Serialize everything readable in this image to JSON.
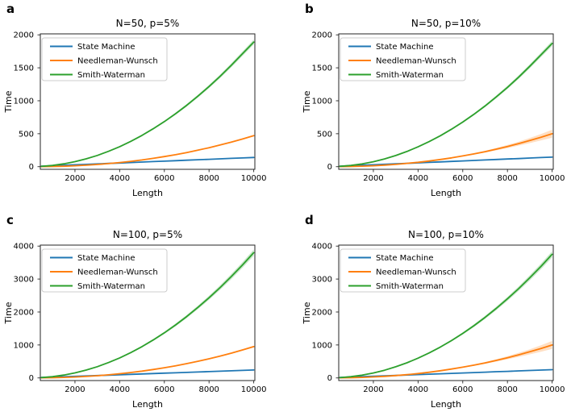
{
  "figure": {
    "background": "#ffffff",
    "spine_color": "#262626",
    "text_color": "#000000",
    "legend_border_color": "#cccccc",
    "series_colors": {
      "state_machine": "#1f77b4",
      "needleman_wunsch": "#ff7f0e",
      "smith_waterman": "#2ca02c"
    }
  },
  "chart_data": [
    {
      "panel": "a",
      "type": "line",
      "title": "N=50, p=5%",
      "xlabel": "Length",
      "ylabel": "Time",
      "xlim": [
        450,
        10050
      ],
      "ylim": [
        -40,
        2015
      ],
      "xticks": [
        2000,
        4000,
        6000,
        8000,
        10000
      ],
      "yticks": [
        0,
        500,
        1000,
        1500,
        2000
      ],
      "grid": false,
      "legend": {
        "position": "upper-left",
        "labels": [
          "State Machine",
          "Needleman-Wunsch",
          "Smith-Waterman"
        ]
      },
      "x": [
        500,
        1000,
        1500,
        2000,
        2500,
        3000,
        3500,
        4000,
        4500,
        5000,
        5500,
        6000,
        6500,
        7000,
        7500,
        8000,
        8500,
        9000,
        9500,
        10000
      ],
      "series": [
        {
          "name": "State Machine",
          "color": "#1f77b4",
          "values": [
            7,
            14,
            21,
            28,
            35,
            42,
            49,
            56,
            63,
            70,
            77,
            84,
            91,
            98,
            105,
            112,
            119,
            126,
            133,
            140
          ],
          "band": [
            0,
            0,
            0,
            0,
            1,
            1,
            1,
            1,
            1,
            1,
            1,
            1,
            1,
            1,
            2,
            2,
            2,
            2,
            2,
            2
          ]
        },
        {
          "name": "Needleman-Wunsch",
          "color": "#ff7f0e",
          "values": [
            1,
            3,
            7,
            14,
            22,
            33,
            47,
            63,
            81,
            102,
            126,
            153,
            182,
            215,
            250,
            288,
            329,
            373,
            420,
            470
          ],
          "band": [
            0,
            0,
            0,
            0,
            0,
            1,
            1,
            1,
            2,
            2,
            3,
            3,
            4,
            4,
            5,
            6,
            7,
            7,
            8,
            9
          ]
        },
        {
          "name": "Smith-Waterman",
          "color": "#2ca02c",
          "values": [
            5,
            19,
            43,
            76,
            119,
            171,
            233,
            304,
            385,
            475,
            575,
            684,
            803,
            931,
            1069,
            1216,
            1373,
            1539,
            1715,
            1890
          ],
          "band": [
            0,
            0,
            1,
            2,
            2,
            3,
            5,
            6,
            8,
            10,
            12,
            14,
            16,
            19,
            21,
            24,
            28,
            31,
            34,
            38
          ]
        }
      ]
    },
    {
      "panel": "b",
      "type": "line",
      "title": "N=50, p=10%",
      "xlabel": "Length",
      "ylabel": "Time",
      "xlim": [
        450,
        10050
      ],
      "ylim": [
        -40,
        2015
      ],
      "xticks": [
        2000,
        4000,
        6000,
        8000,
        10000
      ],
      "yticks": [
        0,
        500,
        1000,
        1500,
        2000
      ],
      "grid": false,
      "legend": {
        "position": "upper-left",
        "labels": [
          "State Machine",
          "Needleman-Wunsch",
          "Smith-Waterman"
        ]
      },
      "x": [
        500,
        1000,
        1500,
        2000,
        2500,
        3000,
        3500,
        4000,
        4500,
        5000,
        5500,
        6000,
        6500,
        7000,
        7500,
        8000,
        8500,
        9000,
        9500,
        10000
      ],
      "series": [
        {
          "name": "State Machine",
          "color": "#1f77b4",
          "values": [
            7,
            15,
            22,
            29,
            36,
            44,
            51,
            58,
            65,
            73,
            80,
            87,
            94,
            102,
            109,
            116,
            123,
            131,
            138,
            145
          ],
          "band": [
            0,
            0,
            0,
            0,
            1,
            1,
            1,
            1,
            1,
            1,
            1,
            1,
            1,
            1,
            2,
            2,
            2,
            2,
            2,
            2
          ]
        },
        {
          "name": "Needleman-Wunsch",
          "color": "#ff7f0e",
          "values": [
            1,
            3,
            8,
            14,
            24,
            35,
            50,
            67,
            86,
            109,
            134,
            163,
            194,
            228,
            266,
            306,
            350,
            397,
            447,
            500
          ],
          "band": [
            0,
            0,
            0,
            0,
            0,
            0,
            1,
            1,
            2,
            3,
            5,
            7,
            10,
            13,
            18,
            24,
            30,
            39,
            48,
            60
          ]
        },
        {
          "name": "Smith-Waterman",
          "color": "#2ca02c",
          "values": [
            5,
            19,
            42,
            75,
            118,
            169,
            230,
            301,
            381,
            470,
            569,
            677,
            794,
            921,
            1058,
            1203,
            1358,
            1523,
            1697,
            1870
          ],
          "band": [
            0,
            0,
            1,
            2,
            2,
            3,
            5,
            6,
            8,
            9,
            11,
            14,
            16,
            18,
            21,
            24,
            27,
            30,
            34,
            38
          ]
        }
      ]
    },
    {
      "panel": "c",
      "type": "line",
      "title": "N=100, p=5%",
      "xlabel": "Length",
      "ylabel": "Time",
      "xlim": [
        450,
        10050
      ],
      "ylim": [
        -80,
        4030
      ],
      "xticks": [
        2000,
        4000,
        6000,
        8000,
        10000
      ],
      "yticks": [
        0,
        1000,
        2000,
        3000,
        4000
      ],
      "grid": false,
      "legend": {
        "position": "upper-left",
        "labels": [
          "State Machine",
          "Needleman-Wunsch",
          "Smith-Waterman"
        ]
      },
      "x": [
        500,
        1000,
        1500,
        2000,
        2500,
        3000,
        3500,
        4000,
        4500,
        5000,
        5500,
        6000,
        6500,
        7000,
        7500,
        8000,
        8500,
        9000,
        9500,
        10000
      ],
      "series": [
        {
          "name": "State Machine",
          "color": "#1f77b4",
          "values": [
            12,
            24,
            36,
            48,
            60,
            72,
            84,
            96,
            108,
            120,
            132,
            144,
            156,
            168,
            180,
            192,
            204,
            216,
            228,
            240
          ],
          "band": [
            0,
            0,
            0,
            1,
            1,
            1,
            1,
            1,
            2,
            2,
            2,
            2,
            2,
            3,
            3,
            3,
            3,
            3,
            4,
            4
          ]
        },
        {
          "name": "Needleman-Wunsch",
          "color": "#ff7f0e",
          "values": [
            2,
            6,
            15,
            27,
            45,
            67,
            94,
            127,
            164,
            207,
            255,
            309,
            368,
            434,
            505,
            581,
            664,
            753,
            849,
            950
          ],
          "band": [
            0,
            0,
            0,
            1,
            1,
            2,
            2,
            3,
            4,
            5,
            6,
            8,
            9,
            11,
            13,
            15,
            17,
            19,
            21,
            24
          ]
        },
        {
          "name": "Smith-Waterman",
          "color": "#2ca02c",
          "values": [
            10,
            38,
            86,
            152,
            238,
            342,
            466,
            608,
            770,
            950,
            1150,
            1368,
            1606,
            1862,
            2138,
            2432,
            2746,
            3078,
            3430,
            3800
          ],
          "band": [
            0,
            1,
            2,
            4,
            6,
            9,
            12,
            15,
            19,
            24,
            29,
            34,
            40,
            47,
            53,
            61,
            69,
            77,
            86,
            95
          ]
        }
      ]
    },
    {
      "panel": "d",
      "type": "line",
      "title": "N=100, p=10%",
      "xlabel": "Length",
      "ylabel": "Time",
      "xlim": [
        450,
        10050
      ],
      "ylim": [
        -80,
        4030
      ],
      "xticks": [
        2000,
        4000,
        6000,
        8000,
        10000
      ],
      "yticks": [
        0,
        1000,
        2000,
        3000,
        4000
      ],
      "grid": false,
      "legend": {
        "position": "upper-left",
        "labels": [
          "State Machine",
          "Needleman-Wunsch",
          "Smith-Waterman"
        ]
      },
      "x": [
        500,
        1000,
        1500,
        2000,
        2500,
        3000,
        3500,
        4000,
        4500,
        5000,
        5500,
        6000,
        6500,
        7000,
        7500,
        8000,
        8500,
        9000,
        9500,
        10000
      ],
      "series": [
        {
          "name": "State Machine",
          "color": "#1f77b4",
          "values": [
            13,
            25,
            38,
            50,
            63,
            75,
            88,
            100,
            113,
            125,
            138,
            150,
            163,
            175,
            188,
            200,
            213,
            225,
            238,
            250
          ],
          "band": [
            0,
            0,
            0,
            1,
            1,
            1,
            1,
            1,
            2,
            2,
            2,
            2,
            2,
            3,
            3,
            3,
            3,
            3,
            4,
            4
          ]
        },
        {
          "name": "Needleman-Wunsch",
          "color": "#ff7f0e",
          "values": [
            2,
            6,
            15,
            29,
            48,
            71,
            99,
            133,
            173,
            218,
            269,
            325,
            388,
            456,
            531,
            612,
            700,
            793,
            894,
            1000
          ],
          "band": [
            0,
            0,
            0,
            0,
            1,
            2,
            3,
            4,
            5,
            7,
            10,
            14,
            20,
            27,
            36,
            47,
            61,
            77,
            97,
            120
          ]
        },
        {
          "name": "Smith-Waterman",
          "color": "#2ca02c",
          "values": [
            9,
            38,
            84,
            150,
            234,
            338,
            459,
            600,
            759,
            938,
            1134,
            1350,
            1584,
            1838,
            2109,
            2400,
            2709,
            3038,
            3384,
            3750
          ],
          "band": [
            0,
            1,
            2,
            4,
            6,
            8,
            11,
            15,
            19,
            23,
            28,
            34,
            40,
            46,
            53,
            60,
            68,
            76,
            85,
            94
          ]
        }
      ]
    }
  ]
}
